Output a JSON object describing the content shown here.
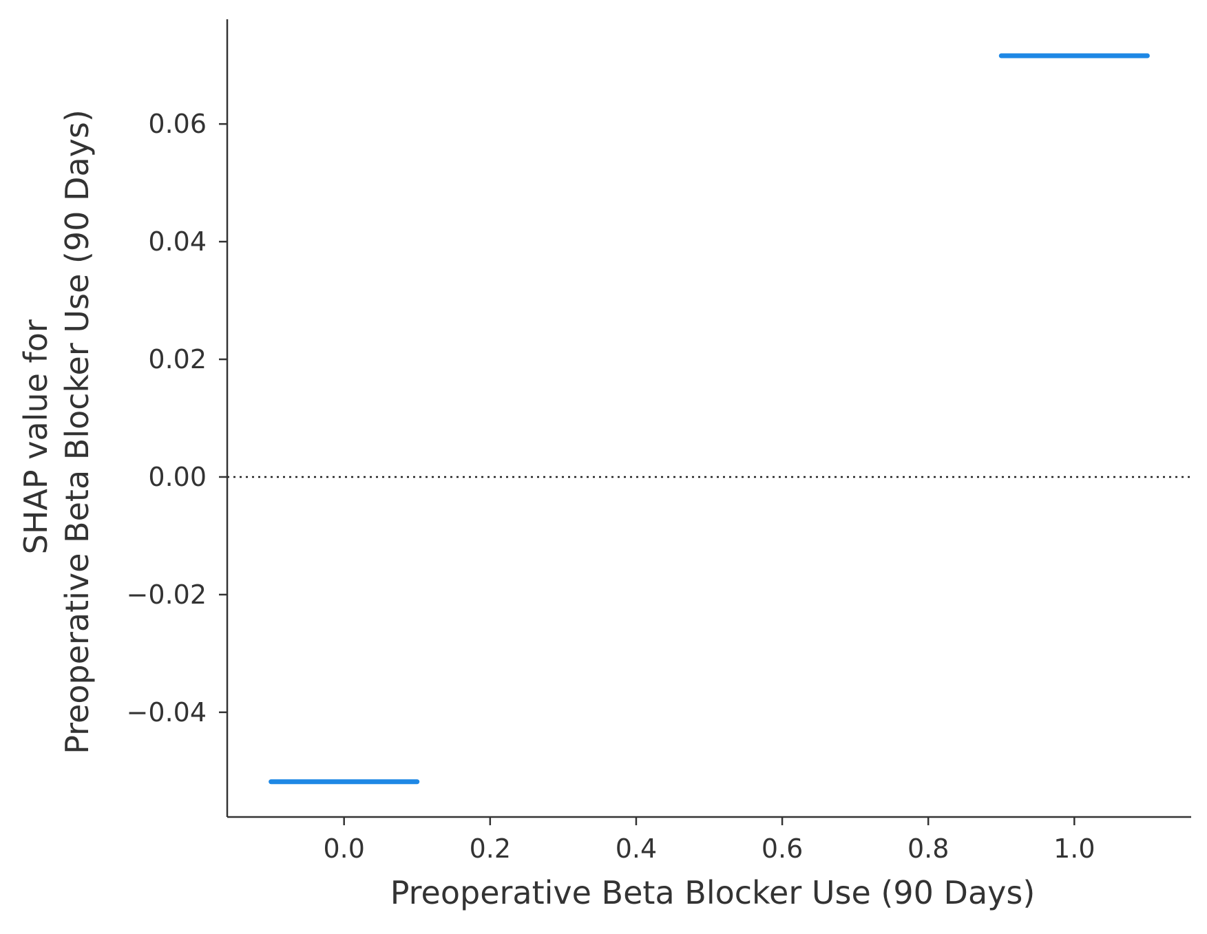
{
  "chart_data": {
    "type": "scatter",
    "xlabel": "Preoperative Beta Blocker Use (90 Days)",
    "ylabel_lines": [
      "SHAP value for",
      "Preoperative Beta Blocker Use (90 Days)"
    ],
    "xlim": [
      -0.16,
      1.16
    ],
    "ylim": [
      -0.0578,
      0.0778
    ],
    "x_ticks": [
      0.0,
      0.2,
      0.4,
      0.6,
      0.8,
      1.0
    ],
    "x_tick_labels": [
      "0.0",
      "0.2",
      "0.4",
      "0.6",
      "0.8",
      "1.0"
    ],
    "y_ticks": [
      0.06,
      0.04,
      0.02,
      0.0,
      -0.02,
      -0.04
    ],
    "y_tick_labels": [
      "0.06",
      "0.04",
      "0.02",
      "0.00",
      "−0.02",
      "−0.04"
    ],
    "reference_line_y": 0.0,
    "grid": false,
    "points": [
      {
        "x_from": -0.1,
        "x_to": 0.1,
        "y": -0.0518
      },
      {
        "x_from": 0.9,
        "x_to": 1.1,
        "y": 0.0716
      }
    ],
    "point_color": "#1E88E5"
  }
}
